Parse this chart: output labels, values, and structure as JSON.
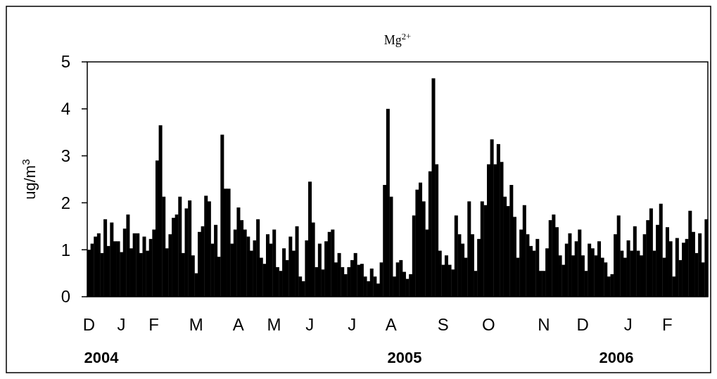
{
  "chart_data": {
    "type": "bar",
    "title": "Mg$^{2+}$",
    "ylabel": "ug/m$^{3}$",
    "annotations": [
      "2004",
      "2005",
      "2006"
    ],
    "categories": [
      "D",
      null,
      null,
      null,
      null,
      null,
      null,
      null,
      null,
      null,
      "J",
      null,
      null,
      null,
      null,
      null,
      null,
      null,
      null,
      null,
      "F",
      null,
      null,
      null,
      null,
      null,
      null,
      null,
      null,
      null,
      null,
      null,
      null,
      "M",
      null,
      null,
      null,
      null,
      null,
      null,
      null,
      null,
      null,
      null,
      null,
      null,
      "A",
      null,
      null,
      null,
      null,
      null,
      null,
      null,
      null,
      null,
      null,
      "M",
      null,
      null,
      null,
      null,
      null,
      null,
      null,
      null,
      null,
      null,
      "J",
      null,
      null,
      null,
      null,
      null,
      null,
      null,
      null,
      null,
      null,
      null,
      null,
      "J",
      null,
      null,
      null,
      null,
      null,
      null,
      null,
      null,
      null,
      null,
      null,
      "A",
      null,
      null,
      null,
      null,
      null,
      null,
      null,
      null,
      null,
      null,
      null,
      null,
      null,
      null,
      null,
      "S",
      null,
      null,
      null,
      null,
      null,
      null,
      null,
      null,
      null,
      null,
      null,
      null,
      null,
      "O",
      null,
      null,
      null,
      null,
      null,
      null,
      null,
      null,
      null,
      null,
      null,
      null,
      null,
      null,
      null,
      null,
      "N",
      null,
      null,
      null,
      null,
      null,
      null,
      null,
      null,
      null,
      null,
      null,
      "D",
      null,
      null,
      null,
      null,
      null,
      null,
      null,
      null,
      null,
      null,
      null,
      null,
      null,
      "J",
      null,
      null,
      null,
      null,
      null,
      null,
      null,
      null,
      null,
      null,
      null,
      "F",
      null,
      null,
      null,
      null,
      null,
      null,
      null,
      null,
      null,
      null,
      null,
      null
    ],
    "ylim": [
      0,
      5
    ],
    "yticks": [
      0,
      1,
      2,
      3,
      4,
      5
    ],
    "series": [
      {
        "color": "#000000",
        "values": [
          1.0,
          1.13,
          1.28,
          1.35,
          0.93,
          1.65,
          1.08,
          1.58,
          1.18,
          1.18,
          0.95,
          1.45,
          1.75,
          1.03,
          1.35,
          1.35,
          0.93,
          1.28,
          0.98,
          1.23,
          1.43,
          2.9,
          3.65,
          2.13,
          1.03,
          1.33,
          1.68,
          1.75,
          2.13,
          0.93,
          1.88,
          2.05,
          0.88,
          0.5,
          1.38,
          1.5,
          2.15,
          2.03,
          1.13,
          1.53,
          0.85,
          3.45,
          2.3,
          2.3,
          1.13,
          1.43,
          1.9,
          1.63,
          1.43,
          1.28,
          0.98,
          1.2,
          1.65,
          0.83,
          0.7,
          1.33,
          1.13,
          1.43,
          0.63,
          0.55,
          1.03,
          0.78,
          1.28,
          0.98,
          1.5,
          0.43,
          0.33,
          1.2,
          2.45,
          1.58,
          0.63,
          1.13,
          0.58,
          1.18,
          1.38,
          1.43,
          0.73,
          0.93,
          0.63,
          0.48,
          0.63,
          0.78,
          0.93,
          0.68,
          0.7,
          0.43,
          0.33,
          0.6,
          0.43,
          0.28,
          0.73,
          2.38,
          4.0,
          2.13,
          0.43,
          0.73,
          0.78,
          0.53,
          0.38,
          0.48,
          1.73,
          2.28,
          2.43,
          2.03,
          1.43,
          2.67,
          4.65,
          2.82,
          0.98,
          0.68,
          0.88,
          0.68,
          0.58,
          1.73,
          1.33,
          1.13,
          0.83,
          2.03,
          1.33,
          0.55,
          1.23,
          2.03,
          1.95,
          2.82,
          3.35,
          2.82,
          3.25,
          2.87,
          2.13,
          1.93,
          2.38,
          1.7,
          0.83,
          1.43,
          1.95,
          1.33,
          1.08,
          0.98,
          1.23,
          0.55,
          0.55,
          1.03,
          1.63,
          1.75,
          1.48,
          0.88,
          0.68,
          1.13,
          1.35,
          0.88,
          1.18,
          1.43,
          0.88,
          0.55,
          1.13,
          1.03,
          0.88,
          1.18,
          0.83,
          0.73,
          0.43,
          0.48,
          1.33,
          1.73,
          0.98,
          0.83,
          1.2,
          0.98,
          1.5,
          0.98,
          0.88,
          1.33,
          1.63,
          1.88,
          0.98,
          1.53,
          1.98,
          0.83,
          1.48,
          1.18,
          0.43,
          1.25,
          0.78,
          1.15,
          1.23,
          1.83,
          1.38,
          0.93,
          1.35,
          0.73,
          1.65
        ]
      }
    ]
  }
}
